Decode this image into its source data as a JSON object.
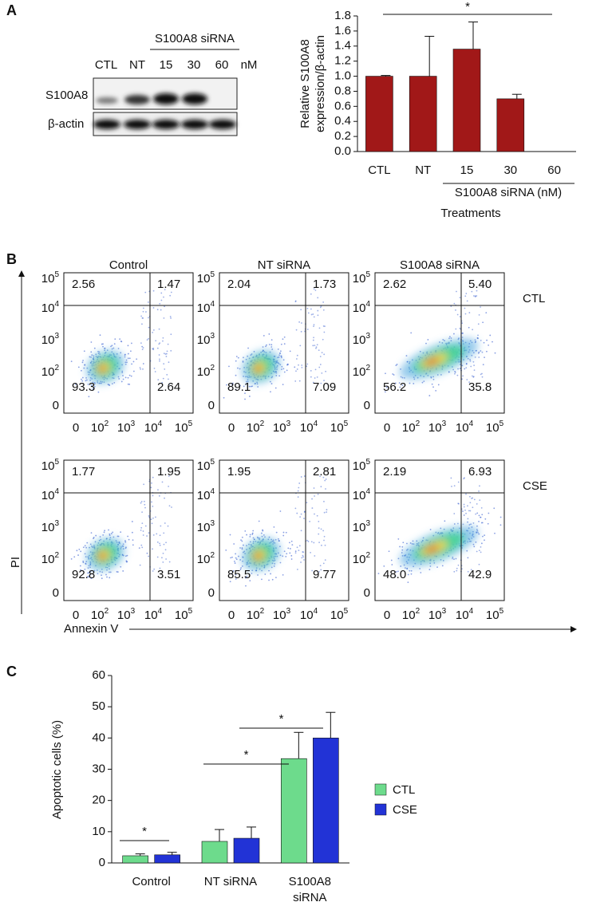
{
  "panel_labels": [
    "A",
    "B",
    "C"
  ],
  "blot": {
    "group_label": "S100A8 siRNA",
    "lanes": [
      "CTL",
      "NT",
      "15",
      "30",
      "60"
    ],
    "unit": "nM",
    "rows": [
      "S100A8",
      "β-actin"
    ]
  },
  "chart_data": [
    {
      "type": "bar",
      "ylabel": [
        "Relative S100A8",
        "expression/β-actin"
      ],
      "categories": [
        "CTL",
        "NT",
        "15",
        "30",
        "60"
      ],
      "values": [
        1.0,
        1.0,
        1.36,
        0.7,
        0
      ],
      "errors": [
        0.01,
        0.53,
        0.36,
        0.06,
        0
      ],
      "color": "#a11818",
      "ylim": [
        0,
        1.8
      ],
      "yticks": [
        {
          "value": 0,
          "label": "0.0"
        },
        0.2,
        0.4,
        0.6,
        0.8,
        {
          "value": 1,
          "label": "1.0"
        },
        1.2,
        1.4,
        1.6,
        1.8
      ],
      "group_label": "S100A8 siRNA (nM)",
      "xlabel": "Treatments",
      "annotations": [
        "*"
      ]
    },
    {
      "type": "grouped_bar",
      "ylabel": "Apoptotic cells (%)",
      "categories": [
        "Control",
        "NT siRNA",
        "S100A8 siRNA"
      ],
      "series": [
        {
          "name": "CTL",
          "color": "#6ddb8c",
          "values": [
            2.3,
            6.9,
            33.4
          ],
          "errors": [
            0.6,
            3.8,
            8.4
          ]
        },
        {
          "name": "CSE",
          "color": "#2233d6",
          "values": [
            2.6,
            7.9,
            40.0
          ],
          "errors": [
            0.8,
            3.6,
            8.2
          ]
        }
      ],
      "ylim": [
        0,
        60
      ],
      "yticks": [
        0,
        10,
        20,
        30,
        40,
        50,
        60
      ],
      "annotations": [
        "*",
        "*",
        "*"
      ]
    }
  ],
  "flow": {
    "columns": [
      "Control",
      "NT siRNA",
      "S100A8 siRNA"
    ],
    "rows": [
      "CTL",
      "CSE"
    ],
    "y_axis_label": "PI",
    "x_axis_label": "Annexin V",
    "yticks": [
      {
        "base": "10",
        "exp": "5"
      },
      {
        "base": "10",
        "exp": "4"
      },
      {
        "base": "10",
        "exp": "3"
      },
      {
        "base": "10",
        "exp": "2"
      },
      {
        "base": "0"
      }
    ],
    "xticks": [
      {
        "base": "0"
      },
      {
        "base": "10",
        "exp": "2"
      },
      {
        "base": "10",
        "exp": "3"
      },
      {
        "base": "10",
        "exp": "4"
      },
      {
        "base": "10",
        "exp": "5"
      }
    ],
    "quadrants": [
      [
        [
          "2.56",
          "1.47",
          "93.3",
          "2.64"
        ],
        [
          "2.04",
          "1.73",
          "89.1",
          "7.09"
        ],
        [
          "2.62",
          "5.40",
          "56.2",
          "35.8"
        ]
      ],
      [
        [
          "1.77",
          "1.95",
          "92.8",
          "3.51"
        ],
        [
          "1.95",
          "2.81",
          "85.5",
          "9.77"
        ],
        [
          "2.19",
          "6.93",
          "48.0",
          "42.9"
        ]
      ]
    ]
  }
}
